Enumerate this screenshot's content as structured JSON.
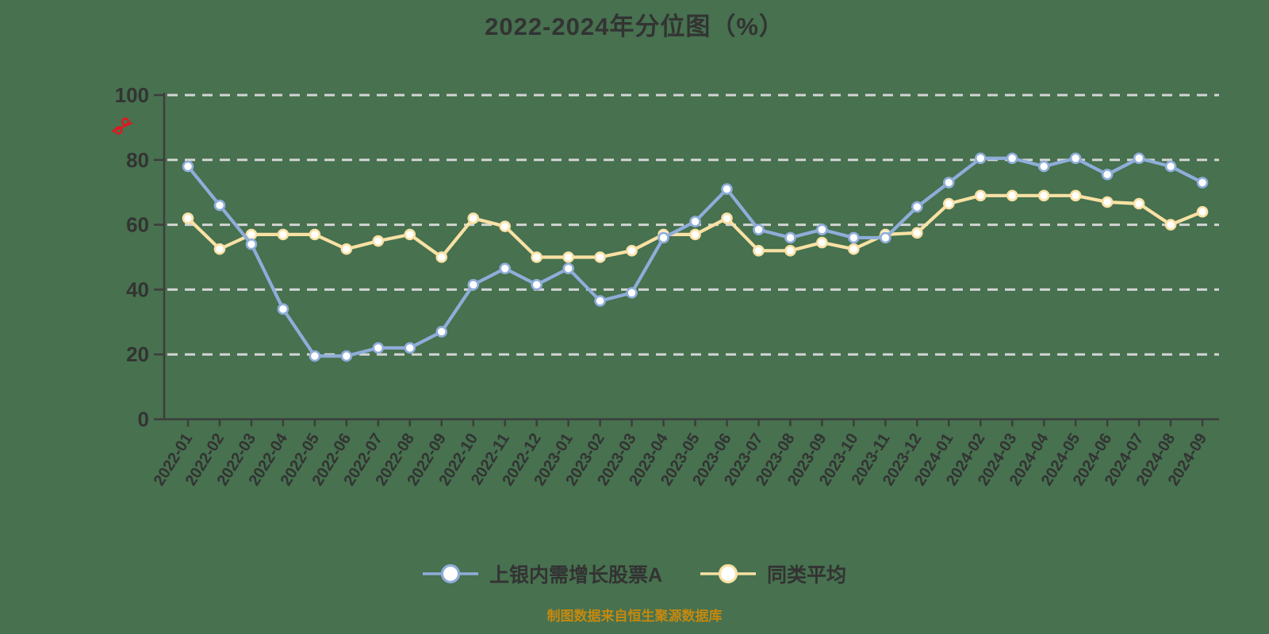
{
  "title": "2022-2024年分位图（%）",
  "y_axis": {
    "unit": "%",
    "ticks": [
      0,
      20,
      40,
      60,
      80,
      100
    ]
  },
  "chart_data": {
    "type": "line",
    "title": "2022-2024年分位图（%）",
    "xlabel": "",
    "ylabel": "%",
    "ylim": [
      0,
      100
    ],
    "yticks": [
      0,
      20,
      40,
      60,
      80,
      100
    ],
    "grid": "horizontal-dashed",
    "legend_position": "bottom",
    "categories": [
      "2022-01",
      "2022-02",
      "2022-03",
      "2022-04",
      "2022-05",
      "2022-06",
      "2022-07",
      "2022-08",
      "2022-09",
      "2022-10",
      "2022-11",
      "2022-12",
      "2023-01",
      "2023-02",
      "2023-03",
      "2023-04",
      "2023-05",
      "2023-06",
      "2023-07",
      "2023-08",
      "2023-09",
      "2023-10",
      "2023-11",
      "2023-12",
      "2024-01",
      "2024-02",
      "2024-03",
      "2024-04",
      "2024-05",
      "2024-06",
      "2024-07",
      "2024-08",
      "2024-09"
    ],
    "series": [
      {
        "name": "同类平均",
        "color": "#f9e1a4",
        "values": [
          62,
          52.5,
          57,
          57,
          57,
          52.5,
          55,
          57,
          50,
          62,
          59.5,
          50,
          50,
          50,
          52,
          57,
          57,
          62,
          52,
          52,
          54.5,
          52.5,
          57,
          57.5,
          66.5,
          69,
          69,
          69,
          69,
          67,
          66.5,
          60,
          64
        ]
      },
      {
        "name": "上银内需增长股票A",
        "color": "#8fadd9",
        "values": [
          78,
          66,
          54,
          34,
          19.5,
          19.5,
          22,
          22,
          27,
          41.5,
          46.5,
          41.5,
          46.5,
          36.5,
          39,
          56,
          61,
          71,
          58.5,
          56,
          58.5,
          56,
          56,
          65.5,
          73,
          80.5,
          80.5,
          78,
          80.5,
          75.5,
          80.5,
          78,
          73
        ]
      }
    ]
  },
  "legend": {
    "items": [
      {
        "label": "上银内需增长股票A",
        "color": "#8fadd9"
      },
      {
        "label": "同类平均",
        "color": "#f9e1a4"
      }
    ]
  },
  "footer": {
    "source_note": "制图数据来自恒生聚源数据库"
  },
  "colors": {
    "background": "#47714f",
    "text": "#333333",
    "axis": "#3d3d3d",
    "gridline": "#d4d4d4",
    "marker_fill": "#ffffff",
    "unit_icon_red": "#e8141e",
    "footer_text": "#c5890f"
  }
}
